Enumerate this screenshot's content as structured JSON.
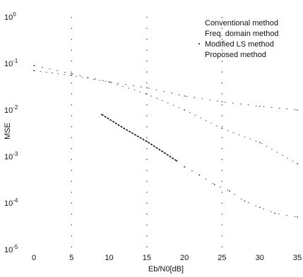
{
  "chart_data": {
    "type": "line",
    "title": "",
    "xlabel": "Eb/N0[dB]",
    "ylabel": "MSE",
    "xlim": [
      0,
      35
    ],
    "ylim": [
      1e-05,
      1
    ],
    "yscale": "log",
    "grid": true,
    "grid_style": "sparse dotted vertical lines at x = 5, 15, 25",
    "legend_position": "top-right",
    "xticks": [
      "0",
      "5",
      "10",
      "15",
      "20",
      "25",
      "30",
      "35"
    ],
    "yticks": [
      {
        "value": 1,
        "label": "10^0"
      },
      {
        "value": 0.1,
        "label": "10^-1"
      },
      {
        "value": 0.01,
        "label": "10^-2"
      },
      {
        "value": 0.001,
        "label": "10^-3"
      },
      {
        "value": 0.0001,
        "label": "10^-4"
      },
      {
        "value": 1e-05,
        "label": "10^-5"
      }
    ],
    "series": [
      {
        "name": "Conventional method",
        "x": [
          0,
          5,
          10,
          15,
          20,
          25,
          30,
          35
        ],
        "y": [
          0.09,
          0.06,
          0.04,
          0.03,
          0.02,
          0.015,
          0.012,
          0.01
        ]
      },
      {
        "name": "Freq. domain method",
        "x": [
          0,
          5,
          10,
          15,
          20,
          25,
          30,
          35
        ],
        "y": [
          0.07,
          0.055,
          0.04,
          0.022,
          0.01,
          0.004,
          0.002,
          0.0007
        ]
      },
      {
        "name": "Modified LS method",
        "x": [
          9,
          12,
          15,
          17,
          19
        ],
        "y": [
          0.008,
          0.004,
          0.0021,
          0.0013,
          0.0008
        ]
      },
      {
        "name": "Proposed method",
        "x": [
          20,
          22,
          24,
          26,
          28,
          30,
          32,
          35
        ],
        "y": [
          0.0006,
          0.0004,
          0.00025,
          0.00018,
          0.00011,
          8e-05,
          6e-05,
          5e-05
        ]
      }
    ],
    "legend_markers": [
      "line",
      "line",
      "dot",
      "line"
    ]
  }
}
